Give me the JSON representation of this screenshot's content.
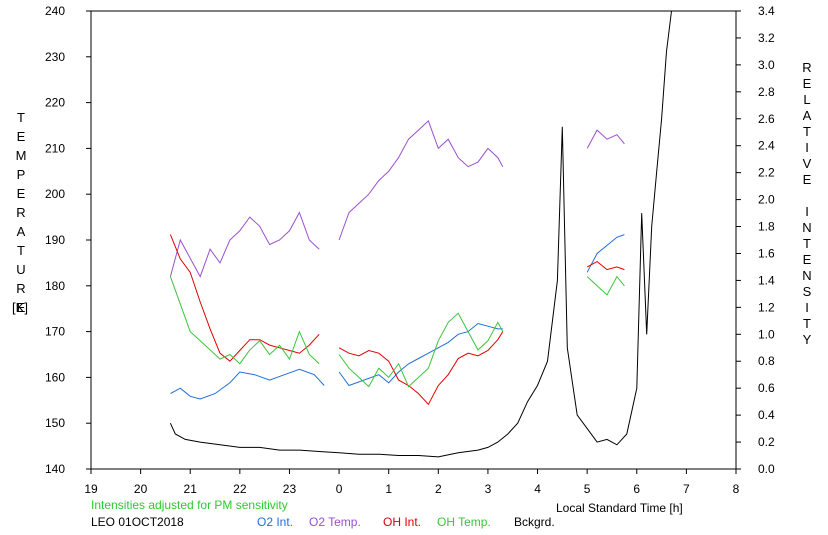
{
  "chart_data": {
    "type": "line",
    "xlabel": "Local Standard Time [h]",
    "x_ticks": [
      "19",
      "20",
      "21",
      "22",
      "23",
      "0",
      "1",
      "2",
      "3",
      "4",
      "5",
      "6",
      "7",
      "8"
    ],
    "left_axis": {
      "label_letters": [
        "T",
        "E",
        "M",
        "P",
        "E",
        "R",
        "A",
        "T",
        "U",
        "R",
        "E"
      ],
      "unit": "[K]",
      "ticks": [
        "140",
        "150",
        "160",
        "170",
        "180",
        "190",
        "200",
        "210",
        "220",
        "230",
        "240"
      ],
      "range": [
        140,
        240
      ]
    },
    "right_axis": {
      "label_letters": [
        "R",
        "E",
        "L",
        "A",
        "T",
        "I",
        "V",
        "E",
        "",
        "I",
        "N",
        "T",
        "E",
        "N",
        "S",
        "I",
        "T",
        "Y"
      ],
      "ticks": [
        "0.0",
        "0.2",
        "0.4",
        "0.6",
        "0.8",
        "1.0",
        "1.2",
        "1.4",
        "1.6",
        "1.8",
        "2.0",
        "2.2",
        "2.4",
        "2.6",
        "2.8",
        "3.0",
        "3.2",
        "3.4"
      ],
      "range": [
        0.0,
        3.4
      ]
    },
    "note": "Intensities adjusted for PM sensitivity",
    "station": "LEO 01OCT2018",
    "series": [
      {
        "name": "O2 Int.",
        "color": "#1f6fd6",
        "axis": "right",
        "segments": [
          [
            [
              20.6,
              0.56
            ],
            [
              20.8,
              0.6
            ],
            [
              21.0,
              0.54
            ],
            [
              21.2,
              0.52
            ],
            [
              21.5,
              0.56
            ],
            [
              21.8,
              0.64
            ],
            [
              22.0,
              0.72
            ],
            [
              22.3,
              0.7
            ],
            [
              22.6,
              0.66
            ],
            [
              22.9,
              0.7
            ],
            [
              23.2,
              0.74
            ],
            [
              23.5,
              0.7
            ],
            [
              23.7,
              0.62
            ]
          ],
          [
            [
              24.0,
              0.72
            ],
            [
              24.2,
              0.62
            ],
            [
              24.5,
              0.66
            ],
            [
              24.8,
              0.7
            ],
            [
              25.0,
              0.64
            ],
            [
              25.2,
              0.72
            ],
            [
              25.4,
              0.78
            ],
            [
              25.6,
              0.82
            ],
            [
              25.8,
              0.86
            ],
            [
              26.0,
              0.9
            ],
            [
              26.2,
              0.94
            ],
            [
              26.4,
              1.0
            ],
            [
              26.6,
              1.02
            ],
            [
              26.8,
              1.08
            ],
            [
              27.0,
              1.06
            ],
            [
              27.2,
              1.04
            ],
            [
              27.3,
              1.04
            ]
          ],
          [
            [
              29.0,
              1.46
            ],
            [
              29.2,
              1.6
            ],
            [
              29.4,
              1.66
            ],
            [
              29.6,
              1.72
            ],
            [
              29.75,
              1.74
            ]
          ]
        ]
      },
      {
        "name": "O2 Temp.",
        "color": "#9a4fd0",
        "axis": "left",
        "segments": [
          [
            [
              20.6,
              182
            ],
            [
              20.8,
              190
            ],
            [
              21.0,
              186
            ],
            [
              21.2,
              182
            ],
            [
              21.4,
              188
            ],
            [
              21.6,
              185
            ],
            [
              21.8,
              190
            ],
            [
              22.0,
              192
            ],
            [
              22.2,
              195
            ],
            [
              22.4,
              193
            ],
            [
              22.6,
              189
            ],
            [
              22.8,
              190
            ],
            [
              23.0,
              192
            ],
            [
              23.2,
              196
            ],
            [
              23.4,
              190
            ],
            [
              23.6,
              188
            ]
          ],
          [
            [
              24.0,
              190
            ],
            [
              24.2,
              196
            ],
            [
              24.4,
              198
            ],
            [
              24.6,
              200
            ],
            [
              24.8,
              203
            ],
            [
              25.0,
              205
            ],
            [
              25.2,
              208
            ],
            [
              25.4,
              212
            ],
            [
              25.6,
              214
            ],
            [
              25.8,
              216
            ],
            [
              26.0,
              210
            ],
            [
              26.2,
              212
            ],
            [
              26.4,
              208
            ],
            [
              26.6,
              206
            ],
            [
              26.8,
              207
            ],
            [
              27.0,
              210
            ],
            [
              27.2,
              208
            ],
            [
              27.3,
              206
            ]
          ],
          [
            [
              29.0,
              210
            ],
            [
              29.2,
              214
            ],
            [
              29.4,
              212
            ],
            [
              29.6,
              213
            ],
            [
              29.75,
              211
            ]
          ]
        ]
      },
      {
        "name": "OH Int.",
        "color": "#e00000",
        "axis": "right",
        "segments": [
          [
            [
              20.6,
              1.74
            ],
            [
              20.8,
              1.56
            ],
            [
              21.0,
              1.46
            ],
            [
              21.2,
              1.24
            ],
            [
              21.4,
              1.04
            ],
            [
              21.6,
              0.86
            ],
            [
              21.8,
              0.8
            ],
            [
              22.0,
              0.88
            ],
            [
              22.2,
              0.96
            ],
            [
              22.4,
              0.96
            ],
            [
              22.6,
              0.92
            ],
            [
              22.8,
              0.9
            ],
            [
              23.0,
              0.88
            ],
            [
              23.2,
              0.86
            ],
            [
              23.4,
              0.92
            ],
            [
              23.6,
              1.0
            ]
          ],
          [
            [
              24.0,
              0.9
            ],
            [
              24.2,
              0.86
            ],
            [
              24.4,
              0.84
            ],
            [
              24.6,
              0.88
            ],
            [
              24.8,
              0.86
            ],
            [
              25.0,
              0.8
            ],
            [
              25.2,
              0.66
            ],
            [
              25.4,
              0.62
            ],
            [
              25.6,
              0.56
            ],
            [
              25.8,
              0.48
            ],
            [
              26.0,
              0.62
            ],
            [
              26.2,
              0.7
            ],
            [
              26.4,
              0.82
            ],
            [
              26.6,
              0.86
            ],
            [
              26.8,
              0.84
            ],
            [
              27.0,
              0.88
            ],
            [
              27.2,
              0.96
            ],
            [
              27.3,
              1.02
            ]
          ],
          [
            [
              29.0,
              1.5
            ],
            [
              29.2,
              1.54
            ],
            [
              29.4,
              1.48
            ],
            [
              29.6,
              1.5
            ],
            [
              29.75,
              1.48
            ]
          ]
        ]
      },
      {
        "name": "OH Temp.",
        "color": "#3cc43c",
        "axis": "left",
        "segments": [
          [
            [
              20.6,
              182
            ],
            [
              20.8,
              176
            ],
            [
              21.0,
              170
            ],
            [
              21.2,
              168
            ],
            [
              21.4,
              166
            ],
            [
              21.6,
              164
            ],
            [
              21.8,
              165
            ],
            [
              22.0,
              163
            ],
            [
              22.2,
              166
            ],
            [
              22.4,
              168
            ],
            [
              22.6,
              165
            ],
            [
              22.8,
              167
            ],
            [
              23.0,
              164
            ],
            [
              23.2,
              170
            ],
            [
              23.4,
              165
            ],
            [
              23.6,
              163
            ]
          ],
          [
            [
              24.0,
              165
            ],
            [
              24.2,
              162
            ],
            [
              24.4,
              160
            ],
            [
              24.6,
              158
            ],
            [
              24.8,
              162
            ],
            [
              25.0,
              160
            ],
            [
              25.2,
              163
            ],
            [
              25.4,
              158
            ],
            [
              25.6,
              160
            ],
            [
              25.8,
              162
            ],
            [
              26.0,
              168
            ],
            [
              26.2,
              172
            ],
            [
              26.4,
              174
            ],
            [
              26.6,
              170
            ],
            [
              26.8,
              166
            ],
            [
              27.0,
              168
            ],
            [
              27.2,
              172
            ],
            [
              27.3,
              170
            ]
          ],
          [
            [
              29.0,
              182
            ],
            [
              29.2,
              180
            ],
            [
              29.4,
              178
            ],
            [
              29.6,
              182
            ],
            [
              29.75,
              180
            ]
          ]
        ]
      },
      {
        "name": "Bckgrd.",
        "color": "#000000",
        "axis": "right",
        "segments": [
          [
            [
              20.6,
              0.34
            ],
            [
              20.7,
              0.26
            ],
            [
              20.9,
              0.22
            ],
            [
              21.2,
              0.2
            ],
            [
              21.6,
              0.18
            ],
            [
              22.0,
              0.16
            ],
            [
              22.4,
              0.16
            ],
            [
              22.8,
              0.14
            ],
            [
              23.2,
              0.14
            ],
            [
              23.6,
              0.13
            ],
            [
              24.0,
              0.12
            ],
            [
              24.4,
              0.11
            ],
            [
              24.8,
              0.11
            ],
            [
              25.2,
              0.1
            ],
            [
              25.6,
              0.1
            ],
            [
              26.0,
              0.09
            ],
            [
              26.4,
              0.12
            ],
            [
              26.8,
              0.14
            ],
            [
              27.0,
              0.16
            ],
            [
              27.2,
              0.2
            ],
            [
              27.4,
              0.26
            ],
            [
              27.6,
              0.34
            ],
            [
              27.8,
              0.5
            ],
            [
              28.0,
              0.62
            ],
            [
              28.2,
              0.8
            ],
            [
              28.4,
              1.4
            ],
            [
              28.5,
              2.54
            ],
            [
              28.6,
              0.9
            ],
            [
              28.8,
              0.4
            ],
            [
              29.0,
              0.3
            ],
            [
              29.2,
              0.2
            ],
            [
              29.4,
              0.22
            ],
            [
              29.6,
              0.18
            ],
            [
              29.8,
              0.26
            ],
            [
              30.0,
              0.6
            ],
            [
              30.1,
              1.9
            ],
            [
              30.2,
              1.0
            ],
            [
              30.3,
              1.8
            ],
            [
              30.4,
              2.2
            ],
            [
              30.5,
              2.6
            ],
            [
              30.6,
              3.1
            ],
            [
              30.7,
              3.4
            ]
          ]
        ]
      }
    ]
  }
}
